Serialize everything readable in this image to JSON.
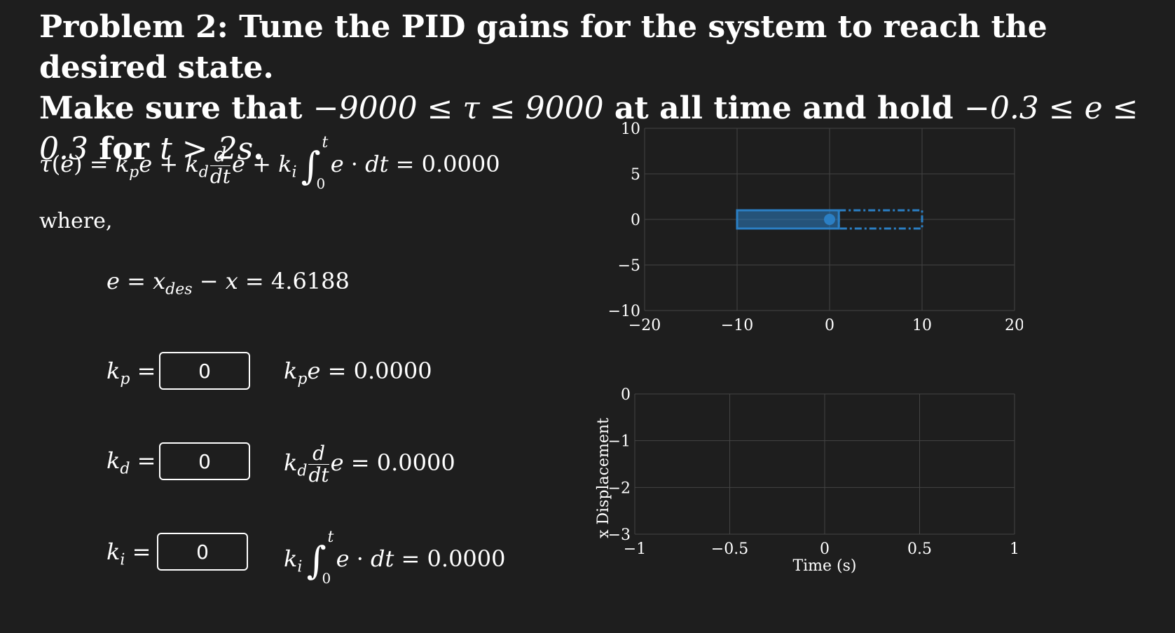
{
  "problem": {
    "line1": "Problem 2: Tune the PID gains for the system to reach the desired state.",
    "line2_a": "Make sure that ",
    "line2_tau": "−9000 ≤ τ ≤ 9000",
    "line2_b": " at all time and hold ",
    "line2_e": "−0.3 ≤ e ≤ 0.3",
    "line2_c": " for ",
    "line2_t": "t > 2s",
    "line2_d": "."
  },
  "controller": {
    "tau_value": "0.0000",
    "where_label": "where,",
    "error_value": "4.6188"
  },
  "gains": {
    "kp": {
      "value": "0",
      "term_value": "0.0000"
    },
    "kd": {
      "value": "0",
      "term_value": "0.0000"
    },
    "ki": {
      "value": "0",
      "term_value": "0.0000"
    }
  },
  "colors": {
    "background": "#1e1e1e",
    "accent": "#2b7fc4",
    "grid": "#444444"
  },
  "chart_data": [
    {
      "type": "scatter",
      "xlim": [
        -20,
        20
      ],
      "ylim": [
        -10,
        10
      ],
      "x_ticks": [
        "−20",
        "−10",
        "0",
        "10",
        "20"
      ],
      "y_ticks": [
        "10",
        "5",
        "0",
        "−5",
        "−10"
      ],
      "grid": true,
      "cart_x_range": [
        -10,
        1
      ],
      "cart_y_range": [
        -1,
        1
      ],
      "target_x_range": [
        1,
        10
      ],
      "target_y_range": [
        -1,
        1
      ],
      "point": {
        "x": 0,
        "y": 0
      }
    },
    {
      "type": "line",
      "xlim": [
        -1,
        1
      ],
      "ylim": [
        -3,
        0
      ],
      "x_ticks": [
        "−1",
        "−0.5",
        "0",
        "0.5",
        "1"
      ],
      "y_ticks": [
        "0",
        "−1",
        "−2",
        "−3"
      ],
      "xlabel": "Time (s)",
      "ylabel": "x Displacement",
      "grid": true,
      "series": []
    }
  ]
}
